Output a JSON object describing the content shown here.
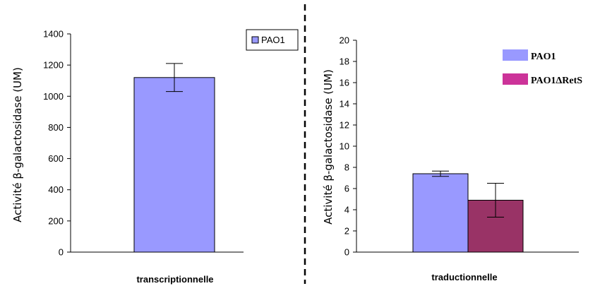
{
  "chart_data": [
    {
      "type": "bar",
      "ylabel": "Activité β-galactosidase (UM)",
      "ylim": [
        0,
        1400
      ],
      "yticks": [
        0,
        200,
        400,
        600,
        800,
        1000,
        1200,
        1400
      ],
      "categories": [
        "transcriptionnelle"
      ],
      "series": [
        {
          "name": "PAO1",
          "values": [
            1120
          ],
          "error": [
            90
          ],
          "color": "#9999ff"
        }
      ],
      "legend": "top-right",
      "grid": false
    },
    {
      "type": "bar",
      "ylabel": "Activité β-galactosidase (UM)",
      "ylim": [
        0,
        20
      ],
      "yticks": [
        0,
        2,
        4,
        6,
        8,
        10,
        12,
        14,
        16,
        18,
        20
      ],
      "categories": [
        "traductionnelle"
      ],
      "series": [
        {
          "name": "PAO1",
          "values": [
            7.4
          ],
          "error": [
            0.25
          ],
          "color": "#9999ff"
        },
        {
          "name": "PAO1ΔRetS",
          "values": [
            4.9
          ],
          "error": [
            1.6
          ],
          "color": "#993366"
        }
      ],
      "legend": "top-right",
      "grid": false
    }
  ],
  "divider": {
    "style": "dashed",
    "color": "#000000"
  }
}
